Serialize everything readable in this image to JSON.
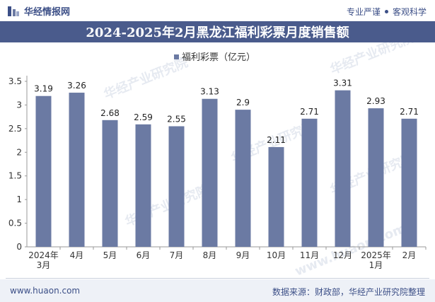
{
  "header": {
    "brand": "华经情报网",
    "tagline_left": "专业严谨",
    "tagline_right": "客观科学"
  },
  "title": "2024-2025年2月黑龙江福利彩票月度销售额",
  "footer": {
    "site": "www.huaon.com",
    "source": "数据来源：财政部，华经产业研究院整理"
  },
  "watermarks": [
    "华经产业研究院",
    "www.huaon.com"
  ],
  "colors": {
    "bar": "#6b7aa3",
    "title_bg": "#4a5b8c",
    "brand": "#3c4f87"
  },
  "chart_data": {
    "type": "bar",
    "categories": [
      "2024年\n3月",
      "4月",
      "5月",
      "6月",
      "7月",
      "8月",
      "9月",
      "10月",
      "11月",
      "12月",
      "2025年\n1月",
      "2月"
    ],
    "series": [
      {
        "name": "福利彩票（亿元）",
        "values": [
          3.19,
          3.26,
          2.68,
          2.59,
          2.55,
          3.13,
          2.9,
          2.11,
          2.71,
          3.31,
          2.93,
          2.71
        ]
      }
    ],
    "y_ticks": [
      "0",
      "0.5",
      "1",
      "1.5",
      "2",
      "2.5",
      "3",
      "3.5"
    ],
    "ylim": [
      0,
      3.5
    ],
    "grid": false,
    "legend_position": "top-center"
  }
}
